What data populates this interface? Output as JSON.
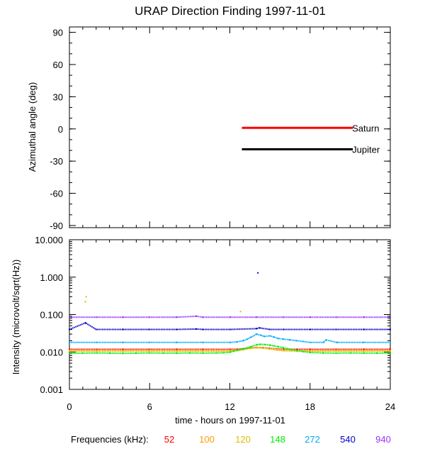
{
  "figure": {
    "title": "URAP Direction Finding  1997-11-01",
    "frequency_legend_label": "Frequencies (kHz):"
  },
  "chart_data": [
    {
      "type": "line",
      "name": "direction",
      "xlabel": "",
      "ylabel": "Azimuthal angle (deg)",
      "xlim": [
        0,
        24
      ],
      "ylim": [
        -92,
        95
      ],
      "yticks": [
        90,
        60,
        30,
        0,
        -30,
        -60,
        -90
      ],
      "ytick_labels": [
        "90",
        "60",
        "30",
        "0",
        "-30",
        "-60",
        "-90"
      ],
      "grid": false,
      "series": [
        {
          "name": "Saturn",
          "color": "#ff0000",
          "x": [
            12.9,
            21.2
          ],
          "y": [
            1,
            1
          ]
        },
        {
          "name": "Jupiter",
          "color": "#000000",
          "x": [
            12.9,
            21.2
          ],
          "y": [
            -19,
            -19
          ]
        }
      ]
    },
    {
      "type": "scatter",
      "name": "intensity",
      "xlabel": "time - hours on 1997-11-01",
      "ylabel": "Intensity (microvolt/sqrt(Hz))",
      "xlim": [
        0,
        24
      ],
      "ylim": [
        0.001,
        10
      ],
      "yscale": "log",
      "xticks": [
        0,
        6,
        12,
        18,
        24
      ],
      "xtick_labels": [
        "0",
        "6",
        "12",
        "18",
        "24"
      ],
      "yticks": [
        10,
        1,
        0.1,
        0.01,
        0.001
      ],
      "ytick_labels": [
        "10.000",
        "1.000",
        "0.100",
        "0.010",
        "0.001"
      ],
      "grid": false,
      "series": [
        {
          "name": "52",
          "color": "#ff0000",
          "x": [
            0,
            2,
            4,
            6,
            8,
            10,
            12,
            12.5,
            13,
            13.5,
            14,
            14.5,
            15,
            15.5,
            16,
            16.5,
            17,
            18,
            20,
            22,
            24
          ],
          "y": [
            0.0118,
            0.0118,
            0.0118,
            0.0118,
            0.0118,
            0.0118,
            0.0118,
            0.0118,
            0.0122,
            0.0128,
            0.0132,
            0.013,
            0.0125,
            0.012,
            0.0118,
            0.0118,
            0.0118,
            0.0118,
            0.0118,
            0.0118,
            0.0118
          ]
        },
        {
          "name": "100",
          "color": "#ff9900",
          "x": [
            0,
            2,
            4,
            6,
            8,
            10,
            12,
            12.5,
            13,
            13.5,
            14,
            14.5,
            15,
            15.5,
            16,
            17,
            18,
            20,
            22,
            24
          ],
          "y": [
            0.011,
            0.011,
            0.011,
            0.011,
            0.011,
            0.011,
            0.011,
            0.0112,
            0.0118,
            0.0125,
            0.013,
            0.0128,
            0.0122,
            0.0116,
            0.0112,
            0.011,
            0.011,
            0.011,
            0.011,
            0.011
          ]
        },
        {
          "name": "120",
          "color": "#ddbb00",
          "x": [
            0,
            2,
            4,
            6,
            8,
            10,
            12,
            12.5,
            13,
            13.5,
            14,
            14.5,
            15,
            15.5,
            16,
            17,
            18,
            20,
            22,
            24,
            1.2,
            1.25,
            12.8
          ],
          "y": [
            0.0105,
            0.0105,
            0.0105,
            0.0105,
            0.0105,
            0.0105,
            0.0105,
            0.0108,
            0.0115,
            0.0124,
            0.013,
            0.0126,
            0.012,
            0.0113,
            0.0108,
            0.0105,
            0.0105,
            0.0105,
            0.0105,
            0.0105,
            0.22,
            0.3,
            0.12
          ]
        },
        {
          "name": "148",
          "color": "#00ee00",
          "x": [
            0,
            1,
            2,
            3,
            4,
            5,
            6,
            7,
            8,
            9,
            10,
            11,
            11.5,
            12,
            12.3,
            12.6,
            13,
            13.3,
            13.6,
            14,
            14.3,
            14.6,
            15,
            15.3,
            15.6,
            16,
            16.3,
            16.6,
            17,
            17.5,
            18,
            19,
            20,
            21,
            22,
            23,
            24
          ],
          "y": [
            0.0092,
            0.0093,
            0.0094,
            0.0093,
            0.0092,
            0.0093,
            0.0094,
            0.0093,
            0.0093,
            0.0094,
            0.0093,
            0.0094,
            0.0095,
            0.0098,
            0.0106,
            0.0112,
            0.012,
            0.0128,
            0.014,
            0.0155,
            0.016,
            0.0158,
            0.0152,
            0.0145,
            0.0138,
            0.013,
            0.0122,
            0.0116,
            0.011,
            0.0102,
            0.0097,
            0.0094,
            0.0093,
            0.0094,
            0.0093,
            0.0093,
            0.0093
          ]
        },
        {
          "name": "272",
          "color": "#00aaff",
          "x": [
            0,
            2,
            4,
            6,
            8,
            10,
            12,
            12.5,
            13,
            13.3,
            13.6,
            14,
            14.3,
            14.6,
            15,
            15.3,
            15.6,
            16,
            16.5,
            17,
            17.5,
            18,
            19,
            20,
            22,
            24,
            19.2
          ],
          "y": [
            0.018,
            0.018,
            0.018,
            0.018,
            0.018,
            0.018,
            0.018,
            0.0185,
            0.02,
            0.022,
            0.025,
            0.03,
            0.028,
            0.026,
            0.027,
            0.025,
            0.023,
            0.022,
            0.021,
            0.02,
            0.019,
            0.018,
            0.018,
            0.018,
            0.018,
            0.018,
            0.021
          ]
        },
        {
          "name": "540",
          "color": "#0000cc",
          "x": [
            0,
            1.2,
            2,
            4,
            6,
            8,
            9.5,
            10,
            12,
            14,
            14.2,
            15,
            16,
            18,
            20,
            22,
            24,
            14.1
          ],
          "y": [
            0.04,
            0.06,
            0.04,
            0.04,
            0.04,
            0.04,
            0.041,
            0.04,
            0.04,
            0.042,
            0.044,
            0.04,
            0.04,
            0.04,
            0.04,
            0.04,
            0.04,
            1.3
          ]
        },
        {
          "name": "940",
          "color": "#9933ff",
          "x": [
            0,
            2,
            4,
            6,
            8,
            9.5,
            10,
            12,
            14,
            16,
            18,
            20,
            22,
            24
          ],
          "y": [
            0.085,
            0.085,
            0.085,
            0.085,
            0.085,
            0.09,
            0.085,
            0.085,
            0.085,
            0.085,
            0.085,
            0.085,
            0.085,
            0.085
          ]
        }
      ]
    }
  ],
  "frequency_legend": [
    {
      "label": "52",
      "color": "#ff0000"
    },
    {
      "label": "100",
      "color": "#ff9900"
    },
    {
      "label": "120",
      "color": "#ddbb00"
    },
    {
      "label": "148",
      "color": "#00ee00"
    },
    {
      "label": "272",
      "color": "#00aaff"
    },
    {
      "label": "540",
      "color": "#0000cc"
    },
    {
      "label": "940",
      "color": "#9933ff"
    }
  ]
}
